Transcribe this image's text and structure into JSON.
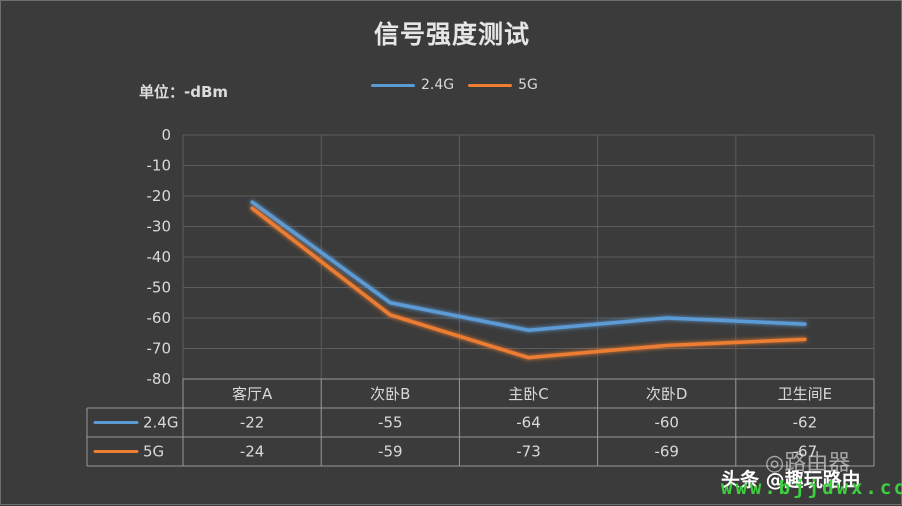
{
  "page": {
    "unit_label": "单位：-dBm",
    "watermark": {
      "source": "头条 @趣玩路由",
      "logo_text": "◎路由器",
      "site": "www.bjjdwx.com"
    }
  },
  "chart_data": {
    "type": "line",
    "title": "信号强度测试",
    "xlabel": "",
    "ylabel": "",
    "categories": [
      "客厅A",
      "次卧B",
      "主卧C",
      "次卧D",
      "卫生间E"
    ],
    "ylim": [
      -80,
      0
    ],
    "yticks": [
      0,
      -10,
      -20,
      -30,
      -40,
      -50,
      -60,
      -70,
      -80
    ],
    "grid": true,
    "legend_position": "top-center",
    "data_table": true,
    "series": [
      {
        "name": "2.4G",
        "color": "#5b9bd5",
        "values": [
          -22,
          -55,
          -64,
          -60,
          -62
        ]
      },
      {
        "name": "5G",
        "color": "#ed7d31",
        "values": [
          -24,
          -59,
          -73,
          -69,
          -67
        ]
      }
    ]
  }
}
